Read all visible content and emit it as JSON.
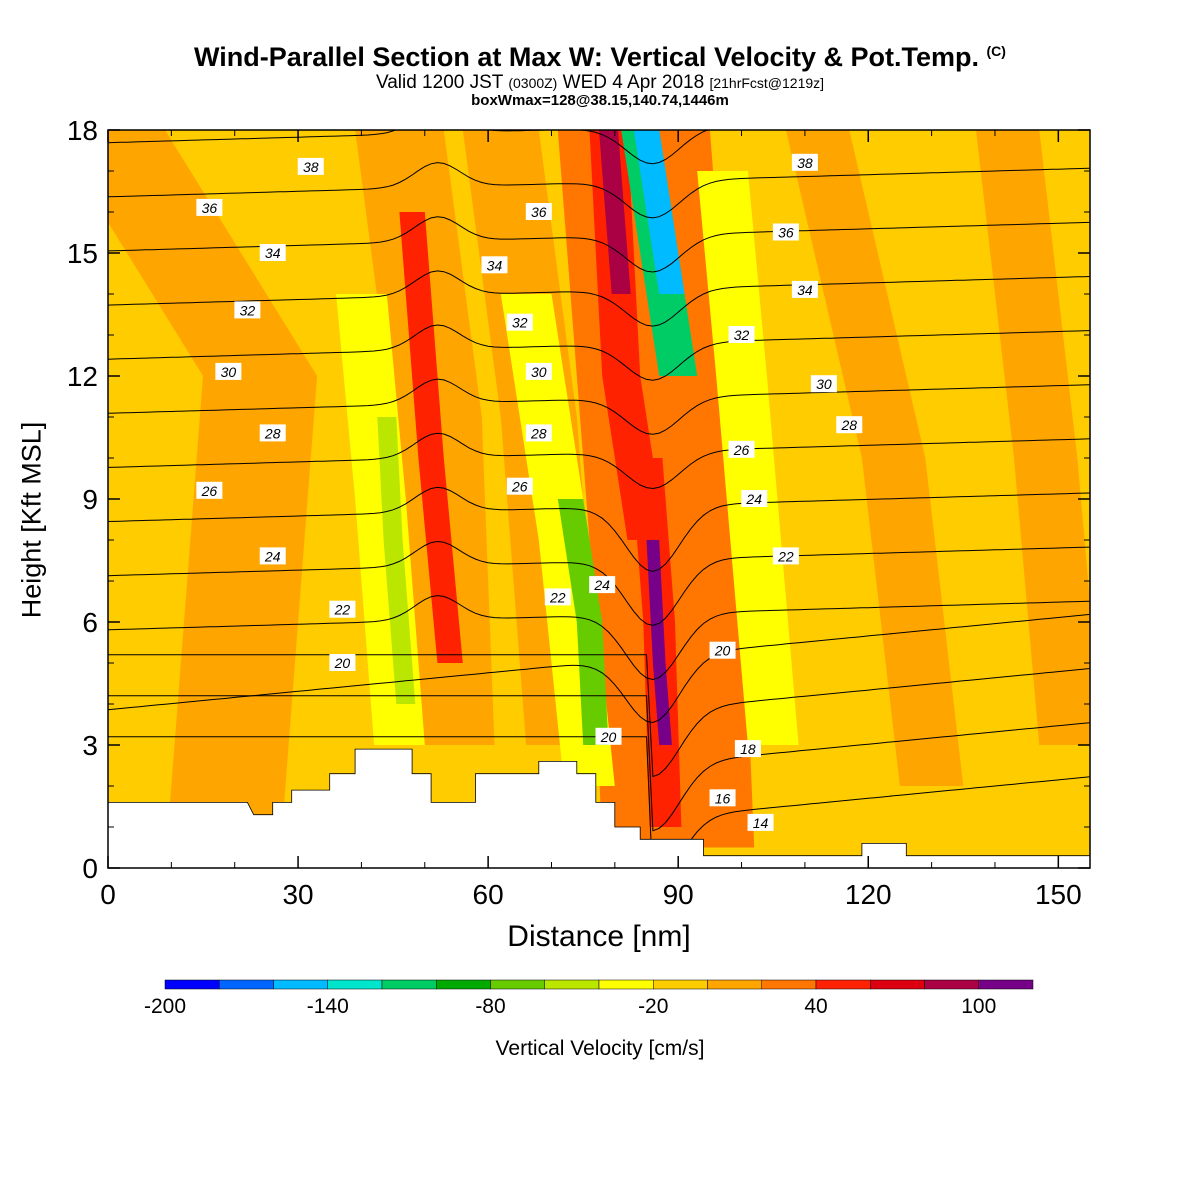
{
  "title": "Wind-Parallel Section at Max W: Vertical Velocity & Pot.Temp.",
  "copyright_mark": "(C)",
  "subtitle_main_a": "Valid 1200 JST",
  "subtitle_small_a": "(0300Z)",
  "subtitle_main_b": "WED 4 Apr 2018",
  "subtitle_small_b": "[21hrFcst@1219z]",
  "subtitle2": "boxWmax=128@38.15,140.74,1446m",
  "colorbar": {
    "label": "Vertical Velocity [cm/s]",
    "tick_labels": [
      "-200",
      "-140",
      "-80",
      "-20",
      "40",
      "100"
    ],
    "levels": [
      -200,
      -180,
      -160,
      -140,
      -120,
      -100,
      -80,
      -60,
      -40,
      -20,
      0,
      20,
      40,
      60,
      80,
      100,
      120
    ],
    "colors": [
      "#0000ff",
      "#0066ff",
      "#00bbff",
      "#00e6cc",
      "#00cc66",
      "#00aa00",
      "#66cc00",
      "#bbe600",
      "#ffff00",
      "#ffcc00",
      "#ffa500",
      "#ff7700",
      "#ff2200",
      "#dd0011",
      "#aa0044",
      "#770088"
    ]
  },
  "chart_data": {
    "type": "contour",
    "xlabel": "Distance [nm]",
    "ylabel": "Height [Kft MSL]",
    "xlim": [
      0,
      155
    ],
    "ylim": [
      0,
      18
    ],
    "xticks": [
      0,
      30,
      60,
      90,
      120,
      150
    ],
    "yticks": [
      0,
      3,
      6,
      9,
      12,
      15,
      18
    ],
    "shaded_field": "Vertical Velocity [cm/s]",
    "contour_field": "Potential temperature",
    "contour_labels": [
      {
        "x": 32,
        "y": 17.1,
        "label": "38"
      },
      {
        "x": 16,
        "y": 16.1,
        "label": "36"
      },
      {
        "x": 26,
        "y": 15.0,
        "label": "34"
      },
      {
        "x": 22,
        "y": 13.6,
        "label": "32"
      },
      {
        "x": 19,
        "y": 12.1,
        "label": "30"
      },
      {
        "x": 26,
        "y": 10.6,
        "label": "28"
      },
      {
        "x": 16,
        "y": 9.2,
        "label": "26"
      },
      {
        "x": 26,
        "y": 7.6,
        "label": "24"
      },
      {
        "x": 37,
        "y": 6.3,
        "label": "22"
      },
      {
        "x": 37,
        "y": 5.0,
        "label": "20"
      },
      {
        "x": 68,
        "y": 16.0,
        "label": "36"
      },
      {
        "x": 61,
        "y": 14.7,
        "label": "34"
      },
      {
        "x": 65,
        "y": 13.3,
        "label": "32"
      },
      {
        "x": 68,
        "y": 12.1,
        "label": "30"
      },
      {
        "x": 68,
        "y": 10.6,
        "label": "28"
      },
      {
        "x": 65,
        "y": 9.3,
        "label": "26"
      },
      {
        "x": 78,
        "y": 6.9,
        "label": "24"
      },
      {
        "x": 71,
        "y": 6.6,
        "label": "22"
      },
      {
        "x": 79,
        "y": 3.2,
        "label": "20"
      },
      {
        "x": 110,
        "y": 17.2,
        "label": "38"
      },
      {
        "x": 107,
        "y": 15.5,
        "label": "36"
      },
      {
        "x": 110,
        "y": 14.1,
        "label": "34"
      },
      {
        "x": 100,
        "y": 13.0,
        "label": "32"
      },
      {
        "x": 113,
        "y": 11.8,
        "label": "30"
      },
      {
        "x": 117,
        "y": 10.8,
        "label": "28"
      },
      {
        "x": 100,
        "y": 10.2,
        "label": "26"
      },
      {
        "x": 102,
        "y": 9.0,
        "label": "24"
      },
      {
        "x": 107,
        "y": 7.6,
        "label": "22"
      },
      {
        "x": 97,
        "y": 5.3,
        "label": "20"
      },
      {
        "x": 101,
        "y": 2.9,
        "label": "18"
      },
      {
        "x": 97,
        "y": 1.7,
        "label": "16"
      },
      {
        "x": 103,
        "y": 1.1,
        "label": "14"
      }
    ],
    "vertical_velocity_features": [
      {
        "x": 87,
        "y": 5,
        "w": 110
      },
      {
        "x": 80,
        "y": 16,
        "w": 90
      },
      {
        "x": 52,
        "y": 9.5,
        "w": 60
      },
      {
        "x": 86,
        "y": 16,
        "w": -140
      },
      {
        "x": 76,
        "y": 5.5,
        "w": -70
      },
      {
        "x": 45,
        "y": 7.5,
        "w": -55
      }
    ]
  }
}
